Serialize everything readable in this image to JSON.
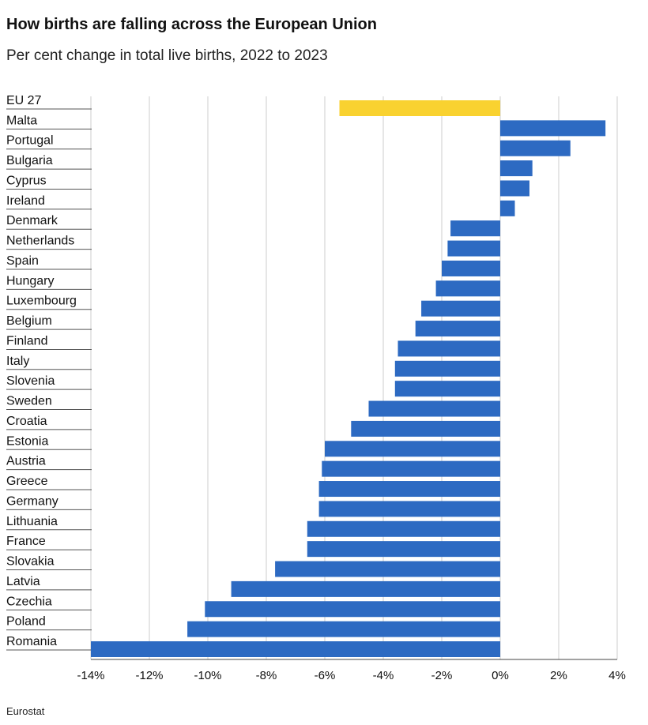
{
  "title": "How births are falling across the European Union",
  "subtitle": "Per cent change in total live births, 2022 to 2023",
  "source": "Eurostat",
  "chart_data": {
    "type": "bar",
    "orientation": "horizontal",
    "categories": [
      "EU 27",
      "Malta",
      "Portugal",
      "Bulgaria",
      "Cyprus",
      "Ireland",
      "Denmark",
      "Netherlands",
      "Spain",
      "Hungary",
      "Luxembourg",
      "Belgium",
      "Finland",
      "Italy",
      "Slovenia",
      "Sweden",
      "Croatia",
      "Estonia",
      "Austria",
      "Greece",
      "Germany",
      "Lithuania",
      "France",
      "Slovakia",
      "Latvia",
      "Czechia",
      "Poland",
      "Romania"
    ],
    "values": [
      -5.5,
      3.6,
      2.4,
      1.1,
      1.0,
      0.5,
      -1.7,
      -1.8,
      -2.0,
      -2.2,
      -2.7,
      -2.9,
      -3.5,
      -3.6,
      -3.6,
      -4.5,
      -5.1,
      -6.0,
      -6.1,
      -6.2,
      -6.2,
      -6.6,
      -6.6,
      -7.7,
      -9.2,
      -10.1,
      -10.7,
      -14.0
    ],
    "xlim": [
      -14,
      4
    ],
    "xticks": [
      -14,
      -12,
      -10,
      -8,
      -6,
      -4,
      -2,
      0,
      2,
      4
    ],
    "xtick_labels": [
      "-14%",
      "-12%",
      "-10%",
      "-8%",
      "-6%",
      "-4%",
      "-2%",
      "0%",
      "2%",
      "4%"
    ],
    "grid": true,
    "colors": {
      "highlight": "#F9D230",
      "default": "#2D6AC2",
      "grid": "#cccccc"
    },
    "highlight_category": "EU 27"
  }
}
